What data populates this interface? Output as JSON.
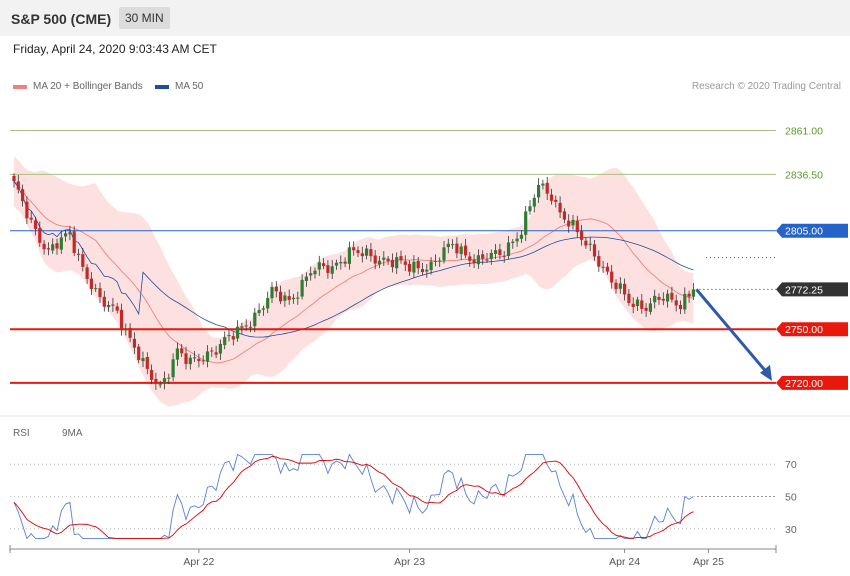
{
  "header": {
    "title": "S&P 500 (CME)",
    "timeframe": "30 MIN"
  },
  "date_text": "Friday, April 24, 2020 9:03:43 AM CET",
  "legend": {
    "bb_label": "MA 20 + Bollinger Bands",
    "ma50_label": "MA 50",
    "credit": "Research © 2020 Trading Central"
  },
  "rsi_legend": {
    "rsi_label": "RSI",
    "ma_label": "9MA"
  },
  "colors": {
    "up": "#2e7d32",
    "down": "#c62828",
    "band": "#fde0e0",
    "ma20": "#f08080",
    "ma50": "#1f4e9c",
    "red_level": "#e8190c",
    "blue_level": "#2563c9",
    "green_level": "#a8c080",
    "rsi": "#5a7fd6",
    "rsi_ma": "#e00000",
    "arrow": "#2e5aa8"
  },
  "chart_data": {
    "type": "candlestick",
    "ylim": [
      2706,
      2878
    ],
    "levels": [
      {
        "value": 2861.0,
        "label": "2861.00",
        "kind": "resistance",
        "color": "green"
      },
      {
        "value": 2836.5,
        "label": "2836.50",
        "kind": "resistance",
        "color": "green"
      },
      {
        "value": 2805.0,
        "label": "2805.00",
        "kind": "pivot",
        "color": "blue"
      },
      {
        "value": 2772.25,
        "label": "2772.25",
        "kind": "last",
        "color": "dark"
      },
      {
        "value": 2750.0,
        "label": "2750.00",
        "kind": "support",
        "color": "red"
      },
      {
        "value": 2720.0,
        "label": "2720.00",
        "kind": "support",
        "color": "red"
      }
    ],
    "x_ticks": [
      "Apr 22",
      "Apr 23",
      "Apr 24",
      "Apr 25"
    ],
    "close_anchors": [
      [
        0,
        2830
      ],
      [
        4,
        2810
      ],
      [
        8,
        2793
      ],
      [
        13,
        2803
      ],
      [
        16,
        2785
      ],
      [
        20,
        2765
      ],
      [
        24,
        2760
      ],
      [
        27,
        2745
      ],
      [
        31,
        2725
      ],
      [
        34,
        2718
      ],
      [
        38,
        2738
      ],
      [
        41,
        2730
      ],
      [
        44,
        2735
      ],
      [
        49,
        2743
      ],
      [
        52,
        2748
      ],
      [
        56,
        2758
      ],
      [
        60,
        2770
      ],
      [
        64,
        2766
      ],
      [
        69,
        2782
      ],
      [
        74,
        2785
      ],
      [
        78,
        2793
      ],
      [
        84,
        2790
      ],
      [
        87,
        2789
      ],
      [
        92,
        2784
      ],
      [
        97,
        2786
      ],
      [
        102,
        2797
      ],
      [
        108,
        2788
      ],
      [
        113,
        2792
      ],
      [
        118,
        2805
      ],
      [
        122,
        2830
      ],
      [
        125,
        2826
      ],
      [
        127,
        2815
      ],
      [
        131,
        2803
      ],
      [
        135,
        2793
      ],
      [
        139,
        2776
      ],
      [
        143,
        2766
      ],
      [
        147,
        2763
      ],
      [
        151,
        2767
      ],
      [
        155,
        2765
      ],
      [
        158,
        2772.25
      ]
    ],
    "forecast": {
      "from": 2772.25,
      "to": 2720.0
    },
    "rsi": {
      "ylim": [
        20,
        80
      ],
      "levels": [
        30,
        50,
        70
      ],
      "last": 50
    }
  }
}
